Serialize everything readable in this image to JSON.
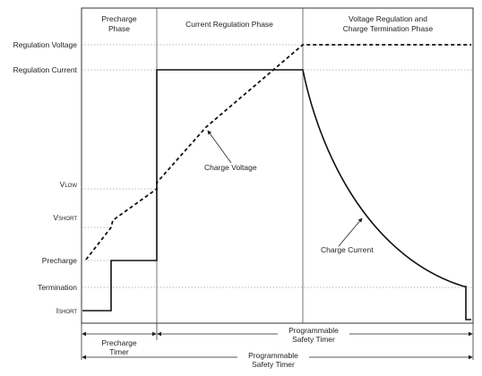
{
  "phases": {
    "precharge": [
      "Precharge",
      "Phase"
    ],
    "current_regulation": "Current Regulation Phase",
    "voltage_regulation": [
      "Voltage Regulation and",
      "Charge Termination Phase"
    ]
  },
  "levels": {
    "regulation_voltage": "Regulation Voltage",
    "regulation_current": "Regulation Current",
    "v_low": {
      "main": "V",
      "sub": "LOW"
    },
    "v_short": {
      "main": "V",
      "sub": "SHORT"
    },
    "precharge": "Precharge",
    "termination": "Termination",
    "i_short": {
      "main": "I",
      "sub": "SHORT"
    }
  },
  "curve_labels": {
    "charge_voltage": "Charge Voltage",
    "charge_current": "Charge Current"
  },
  "timers": {
    "precharge_timer": [
      "Precharge",
      "Timer"
    ],
    "programmable_safety_timer_1": [
      "Programmable",
      "Safety Timer"
    ],
    "programmable_safety_timer_2": [
      "Programmable",
      "Safety Timer"
    ]
  }
}
